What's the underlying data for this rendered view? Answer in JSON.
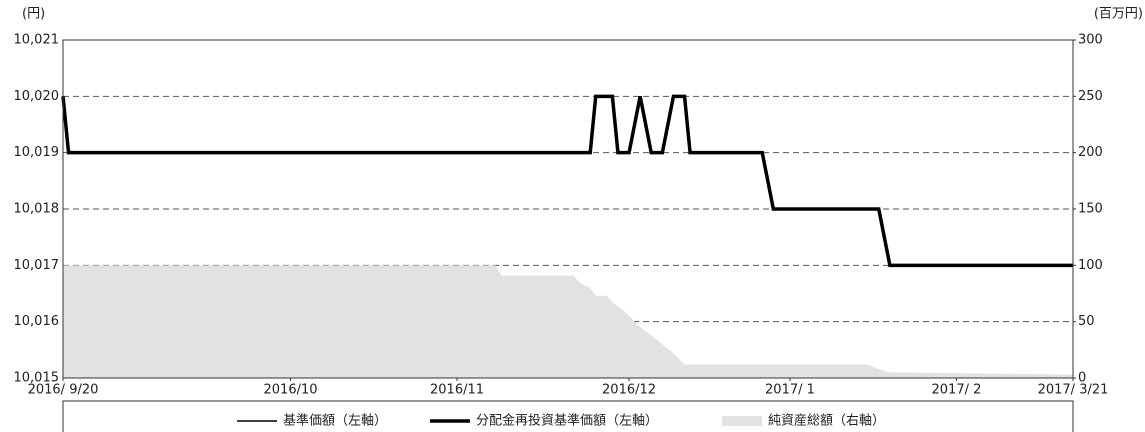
{
  "chart_data": {
    "type": "line",
    "y_label": "(円)",
    "y2_label": "(百万円)",
    "xlim": [
      "2016-09-20",
      "2017-03-21"
    ],
    "xticks": [
      {
        "value": "2016-09-20",
        "label": "2016/ 9/20"
      },
      {
        "value": "2016-10-31",
        "label": "2016/10"
      },
      {
        "value": "2016-11-30",
        "label": "2016/11"
      },
      {
        "value": "2016-12-31",
        "label": "2016/12"
      },
      {
        "value": "2017-01-29",
        "label": "2017/ 1"
      },
      {
        "value": "2017-02-28",
        "label": "2017/ 2"
      },
      {
        "value": "2017-03-21",
        "label": "2017/ 3/21"
      }
    ],
    "ylim": [
      10015,
      10021
    ],
    "yticks": [
      {
        "value": 10015,
        "label": "10,015"
      },
      {
        "value": 10016,
        "label": "10,016"
      },
      {
        "value": 10017,
        "label": "10,017"
      },
      {
        "value": 10018,
        "label": "10,018"
      },
      {
        "value": 10019,
        "label": "10,019"
      },
      {
        "value": 10020,
        "label": "10,020"
      },
      {
        "value": 10021,
        "label": "10,021"
      }
    ],
    "y2lim": [
      0,
      300
    ],
    "y2ticks": [
      0,
      50,
      100,
      150,
      200,
      250,
      300
    ],
    "grid": true,
    "legend": "bottom",
    "series": [
      {
        "name": "純資産総額（右軸）",
        "type": "area",
        "axis": "y2",
        "color": "#e2e2e2",
        "x": [
          "2016-09-20",
          "2016-12-07",
          "2016-12-08",
          "2016-12-21",
          "2016-12-22",
          "2016-12-24",
          "2016-12-25",
          "2016-12-27",
          "2016-12-28",
          "2016-12-30",
          "2016-12-31",
          "2017-01-02",
          "2017-01-04",
          "2017-01-06",
          "2017-01-08",
          "2017-01-10",
          "2017-02-12",
          "2017-02-14",
          "2017-02-16",
          "2017-03-21"
        ],
        "values": [
          100,
          100,
          91,
          91,
          85,
          80,
          73,
          73,
          67,
          60,
          55,
          45,
          38,
          30,
          22,
          12,
          12,
          8,
          5,
          3
        ]
      },
      {
        "name": "基準価額（左軸）",
        "type": "line",
        "color": "#000000",
        "width": 1.5,
        "x": [
          "2016-09-20",
          "2016-09-21",
          "2016-12-24",
          "2016-12-25",
          "2016-12-28",
          "2016-12-29",
          "2016-12-31",
          "2017-01-02",
          "2017-01-04",
          "2017-01-06",
          "2017-01-08",
          "2017-01-10",
          "2017-01-11",
          "2017-01-24",
          "2017-01-26",
          "2017-02-14",
          "2017-02-16",
          "2017-03-21"
        ],
        "values": [
          10020,
          10019,
          10019,
          10020,
          10020,
          10019,
          10019,
          10020,
          10019,
          10019,
          10020,
          10020,
          10019,
          10019,
          10018,
          10018,
          10017,
          10017
        ]
      },
      {
        "name": "分配金再投資基準価額（左軸）",
        "type": "line",
        "color": "#000000",
        "width": 3.5,
        "x": [
          "2016-09-20",
          "2016-09-21",
          "2016-12-24",
          "2016-12-25",
          "2016-12-28",
          "2016-12-29",
          "2016-12-31",
          "2017-01-02",
          "2017-01-04",
          "2017-01-06",
          "2017-01-08",
          "2017-01-10",
          "2017-01-11",
          "2017-01-24",
          "2017-01-26",
          "2017-02-14",
          "2017-02-16",
          "2017-03-21"
        ],
        "values": [
          10020,
          10019,
          10019,
          10020,
          10020,
          10019,
          10019,
          10020,
          10019,
          10019,
          10020,
          10020,
          10019,
          10019,
          10018,
          10018,
          10017,
          10017
        ]
      }
    ]
  }
}
